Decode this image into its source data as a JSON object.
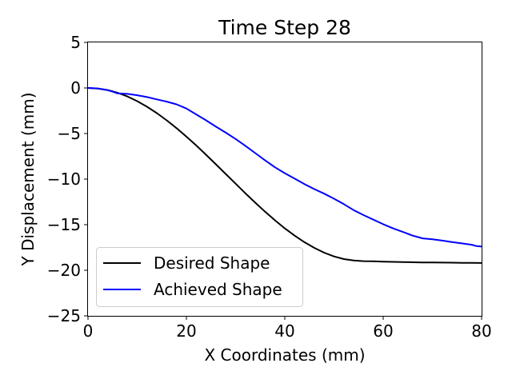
{
  "chart_data": {
    "type": "line",
    "title": "Time Step 28",
    "xlabel": "X Coordinates (mm)",
    "ylabel": "Y Displacement (mm)",
    "xlim": [
      0,
      80
    ],
    "ylim": [
      -25,
      5
    ],
    "xticks": [
      0,
      20,
      40,
      60,
      80
    ],
    "xtick_labels": [
      "0",
      "20",
      "40",
      "60",
      "80"
    ],
    "yticks": [
      5,
      0,
      -5,
      -10,
      -15,
      -20,
      -25
    ],
    "ytick_labels": [
      "5",
      "0",
      "−5",
      "−10",
      "−15",
      "−20",
      "−25"
    ],
    "grid": false,
    "legend_position": "lower-left",
    "series": [
      {
        "name": "Desired Shape",
        "color": "#000000",
        "x": [
          0,
          2,
          4,
          6,
          8,
          10,
          12,
          14,
          16,
          18,
          20,
          22,
          24,
          26,
          28,
          30,
          32,
          34,
          36,
          38,
          40,
          42,
          44,
          46,
          48,
          50,
          52,
          54,
          56,
          58,
          60,
          62,
          64,
          66,
          68,
          70,
          72,
          74,
          76,
          78,
          80
        ],
        "y": [
          -0.0,
          -0.06,
          -0.23,
          -0.53,
          -0.93,
          -1.45,
          -2.06,
          -2.76,
          -3.55,
          -4.41,
          -5.34,
          -6.31,
          -7.33,
          -8.38,
          -9.44,
          -10.5,
          -11.56,
          -12.59,
          -13.58,
          -14.52,
          -15.4,
          -16.2,
          -16.92,
          -17.54,
          -18.07,
          -18.48,
          -18.77,
          -18.93,
          -19.0,
          -19.02,
          -19.05,
          -19.08,
          -19.1,
          -19.12,
          -19.14,
          -19.15,
          -19.16,
          -19.17,
          -19.18,
          -19.19,
          -19.2
        ]
      },
      {
        "name": "Achieved Shape",
        "color": "#0000ff",
        "x": [
          0,
          2,
          4,
          5,
          6,
          8,
          10,
          12,
          14,
          16,
          18,
          20,
          22,
          24,
          26,
          28,
          30,
          32,
          34,
          36,
          38,
          40,
          42,
          44,
          46,
          48,
          50,
          52,
          54,
          56,
          58,
          60,
          62,
          64,
          66,
          67,
          68,
          70,
          72,
          74,
          76,
          78,
          79,
          80
        ],
        "y": [
          0.0,
          -0.05,
          -0.25,
          -0.4,
          -0.6,
          -0.65,
          -0.8,
          -1.0,
          -1.25,
          -1.5,
          -1.8,
          -2.25,
          -2.9,
          -3.55,
          -4.25,
          -4.9,
          -5.6,
          -6.35,
          -7.15,
          -7.95,
          -8.7,
          -9.35,
          -9.95,
          -10.55,
          -11.1,
          -11.6,
          -12.15,
          -12.75,
          -13.4,
          -13.95,
          -14.45,
          -14.95,
          -15.4,
          -15.8,
          -16.2,
          -16.35,
          -16.5,
          -16.6,
          -16.75,
          -16.9,
          -17.05,
          -17.2,
          -17.35,
          -17.4
        ]
      }
    ]
  }
}
